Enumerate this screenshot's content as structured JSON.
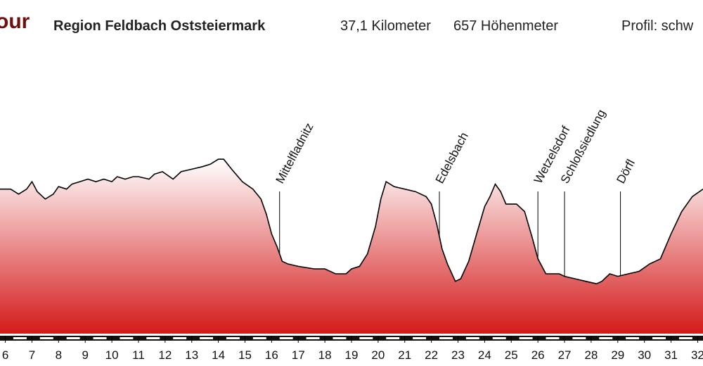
{
  "header": {
    "title_fragment": "our",
    "region": "Region Feldbach Oststeiermark",
    "distance": "37,1 Kilometer",
    "elevation_gain": "657 Höhenmeter",
    "profile": "Profil: schw"
  },
  "colors": {
    "title": "#6e1010",
    "fill_top": "#ffffff",
    "fill_bottom": "#d41a1a",
    "line": "#000000"
  },
  "chart_data": {
    "type": "area",
    "title": "",
    "xlabel": "",
    "ylabel": "",
    "x_unit": "km",
    "xlim": [
      5.8,
      32.2
    ],
    "x_ticks": [
      6,
      7,
      8,
      9,
      10,
      11,
      12,
      13,
      14,
      15,
      16,
      17,
      18,
      19,
      20,
      21,
      22,
      23,
      24,
      25,
      26,
      27,
      28,
      29,
      30,
      31,
      32
    ],
    "ylim": [
      0,
      100
    ],
    "grid": false,
    "profile": [
      [
        5.8,
        58
      ],
      [
        6.2,
        58
      ],
      [
        6.5,
        56
      ],
      [
        6.8,
        58
      ],
      [
        7.0,
        61
      ],
      [
        7.2,
        57
      ],
      [
        7.5,
        54
      ],
      [
        7.8,
        56
      ],
      [
        8.0,
        59
      ],
      [
        8.3,
        58
      ],
      [
        8.5,
        60
      ],
      [
        8.8,
        61
      ],
      [
        9.1,
        62
      ],
      [
        9.4,
        61
      ],
      [
        9.7,
        62
      ],
      [
        10.0,
        61
      ],
      [
        10.2,
        63
      ],
      [
        10.5,
        62
      ],
      [
        10.8,
        63
      ],
      [
        11.0,
        63
      ],
      [
        11.4,
        62
      ],
      [
        11.6,
        64
      ],
      [
        11.9,
        65
      ],
      [
        12.3,
        62
      ],
      [
        12.6,
        65
      ],
      [
        13.0,
        66
      ],
      [
        13.4,
        67
      ],
      [
        13.7,
        68
      ],
      [
        14.0,
        70
      ],
      [
        14.2,
        70
      ],
      [
        14.5,
        66
      ],
      [
        14.9,
        61
      ],
      [
        15.3,
        58
      ],
      [
        15.6,
        54
      ],
      [
        15.8,
        48
      ],
      [
        16.0,
        40
      ],
      [
        16.2,
        35
      ],
      [
        16.4,
        29
      ],
      [
        16.6,
        28
      ],
      [
        17.0,
        27
      ],
      [
        17.6,
        26
      ],
      [
        18.0,
        26
      ],
      [
        18.4,
        24
      ],
      [
        18.8,
        24
      ],
      [
        19.0,
        26
      ],
      [
        19.3,
        27
      ],
      [
        19.6,
        32
      ],
      [
        19.9,
        43
      ],
      [
        20.1,
        54
      ],
      [
        20.3,
        61
      ],
      [
        20.6,
        59
      ],
      [
        21.0,
        58
      ],
      [
        21.4,
        57
      ],
      [
        21.8,
        55
      ],
      [
        22.0,
        52
      ],
      [
        22.2,
        44
      ],
      [
        22.4,
        34
      ],
      [
        22.6,
        28
      ],
      [
        22.9,
        21
      ],
      [
        23.1,
        22
      ],
      [
        23.4,
        29
      ],
      [
        23.7,
        40
      ],
      [
        24.0,
        51
      ],
      [
        24.2,
        55
      ],
      [
        24.4,
        60
      ],
      [
        24.6,
        57
      ],
      [
        24.8,
        52
      ],
      [
        25.2,
        52
      ],
      [
        25.5,
        49
      ],
      [
        25.8,
        38
      ],
      [
        26.0,
        30
      ],
      [
        26.3,
        24
      ],
      [
        26.8,
        24
      ],
      [
        27.0,
        23
      ],
      [
        27.4,
        22
      ],
      [
        27.8,
        21
      ],
      [
        28.2,
        20
      ],
      [
        28.4,
        21
      ],
      [
        28.7,
        24
      ],
      [
        29.0,
        23
      ],
      [
        29.4,
        24
      ],
      [
        29.8,
        25
      ],
      [
        30.2,
        28
      ],
      [
        30.6,
        30
      ],
      [
        31.0,
        40
      ],
      [
        31.4,
        49
      ],
      [
        31.8,
        55
      ],
      [
        32.2,
        58
      ]
    ],
    "places": [
      {
        "name": "Mittelfladnitz",
        "km": 16.3
      },
      {
        "name": "Edelsbach",
        "km": 22.3
      },
      {
        "name": "Wetzelsdorf",
        "km": 26.0
      },
      {
        "name": "Schloßsiedlung",
        "km": 27.0
      },
      {
        "name": "Dörfl",
        "km": 29.1
      }
    ]
  }
}
